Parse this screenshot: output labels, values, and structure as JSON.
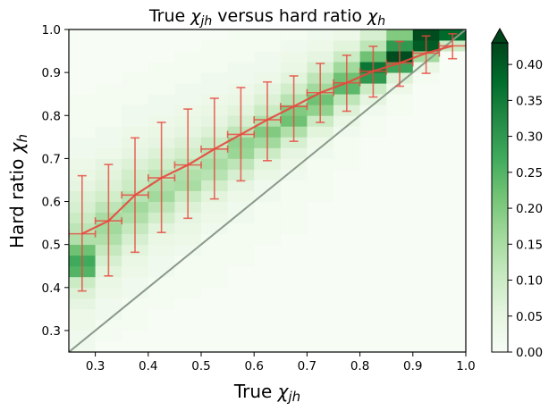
{
  "chart_data": {
    "type": "heatmap",
    "title": "True χjh versus hard ratio χh",
    "title_parts": {
      "prefix": "True ",
      "sym1": "χ",
      "sub1": "jh",
      "middle": " versus hard ratio ",
      "sym2": "χ",
      "sub2": "h"
    },
    "xlabel_parts": {
      "prefix": "True ",
      "sym": "χ",
      "sub": "jh"
    },
    "ylabel_parts": {
      "prefix": "Hard ratio ",
      "sym": "χ",
      "sub": "h"
    },
    "xlim": [
      0.25,
      1.0
    ],
    "ylim": [
      0.25,
      1.0
    ],
    "x_ticks": [
      "0.3",
      "0.4",
      "0.5",
      "0.6",
      "0.7",
      "0.8",
      "0.9",
      "1.0"
    ],
    "y_ticks": [
      "0.3",
      "0.4",
      "0.5",
      "0.6",
      "0.7",
      "0.8",
      "0.9",
      "1.0"
    ],
    "colormap": "Greens",
    "colorbar": {
      "min": 0.0,
      "max": 0.43,
      "extend": "max",
      "ticks": [
        "0.00",
        "0.05",
        "0.10",
        "0.15",
        "0.20",
        "0.25",
        "0.30",
        "0.35",
        "0.40"
      ]
    },
    "x_bin_edges": [
      0.25,
      0.3,
      0.35,
      0.4,
      0.45,
      0.5,
      0.55,
      0.6,
      0.65,
      0.7,
      0.75,
      0.8,
      0.85,
      0.9,
      0.95,
      1.0
    ],
    "y_bin_edges": [
      0.25,
      0.275,
      0.3,
      0.325,
      0.35,
      0.375,
      0.4,
      0.425,
      0.45,
      0.475,
      0.5,
      0.525,
      0.55,
      0.575,
      0.6,
      0.625,
      0.65,
      0.675,
      0.7,
      0.725,
      0.75,
      0.775,
      0.8,
      0.825,
      0.85,
      0.875,
      0.9,
      0.925,
      0.95,
      0.975,
      1.0
    ],
    "heatmap_values": [
      [
        0.02,
        0.0,
        0.0,
        0.0,
        0.0,
        0.0,
        0.0,
        0.0,
        0.0,
        0.0,
        0.0,
        0.0,
        0.0,
        0.0,
        0.0
      ],
      [
        0.02,
        0.01,
        0.0,
        0.0,
        0.0,
        0.0,
        0.0,
        0.0,
        0.0,
        0.0,
        0.0,
        0.0,
        0.0,
        0.0,
        0.0
      ],
      [
        0.03,
        0.01,
        0.01,
        0.0,
        0.0,
        0.0,
        0.0,
        0.0,
        0.0,
        0.0,
        0.0,
        0.0,
        0.0,
        0.0,
        0.0
      ],
      [
        0.03,
        0.02,
        0.01,
        0.0,
        0.0,
        0.0,
        0.0,
        0.0,
        0.0,
        0.0,
        0.0,
        0.0,
        0.0,
        0.0,
        0.0
      ],
      [
        0.05,
        0.02,
        0.01,
        0.01,
        0.0,
        0.0,
        0.0,
        0.0,
        0.0,
        0.0,
        0.0,
        0.0,
        0.0,
        0.0,
        0.0
      ],
      [
        0.07,
        0.03,
        0.02,
        0.01,
        0.01,
        0.0,
        0.0,
        0.0,
        0.0,
        0.0,
        0.0,
        0.0,
        0.0,
        0.0,
        0.0
      ],
      [
        0.1,
        0.04,
        0.02,
        0.01,
        0.01,
        0.01,
        0.0,
        0.0,
        0.0,
        0.0,
        0.0,
        0.0,
        0.0,
        0.0,
        0.0
      ],
      [
        0.25,
        0.06,
        0.03,
        0.02,
        0.01,
        0.01,
        0.0,
        0.0,
        0.0,
        0.0,
        0.0,
        0.0,
        0.0,
        0.0,
        0.0
      ],
      [
        0.27,
        0.08,
        0.04,
        0.02,
        0.01,
        0.01,
        0.01,
        0.0,
        0.0,
        0.0,
        0.0,
        0.0,
        0.0,
        0.0,
        0.0
      ],
      [
        0.22,
        0.11,
        0.06,
        0.03,
        0.02,
        0.01,
        0.01,
        0.0,
        0.0,
        0.0,
        0.0,
        0.0,
        0.0,
        0.0,
        0.0
      ],
      [
        0.14,
        0.14,
        0.08,
        0.04,
        0.03,
        0.01,
        0.01,
        0.01,
        0.0,
        0.0,
        0.0,
        0.0,
        0.0,
        0.0,
        0.0
      ],
      [
        0.12,
        0.16,
        0.11,
        0.06,
        0.04,
        0.02,
        0.01,
        0.01,
        0.01,
        0.0,
        0.0,
        0.0,
        0.0,
        0.0,
        0.0
      ],
      [
        0.1,
        0.15,
        0.14,
        0.09,
        0.05,
        0.03,
        0.02,
        0.01,
        0.01,
        0.0,
        0.0,
        0.0,
        0.0,
        0.0,
        0.0
      ],
      [
        0.08,
        0.12,
        0.16,
        0.12,
        0.07,
        0.04,
        0.02,
        0.01,
        0.01,
        0.0,
        0.0,
        0.0,
        0.0,
        0.0,
        0.0
      ],
      [
        0.07,
        0.09,
        0.13,
        0.16,
        0.1,
        0.06,
        0.03,
        0.02,
        0.01,
        0.01,
        0.0,
        0.0,
        0.0,
        0.0,
        0.0
      ],
      [
        0.05,
        0.07,
        0.1,
        0.14,
        0.15,
        0.09,
        0.05,
        0.02,
        0.01,
        0.01,
        0.0,
        0.0,
        0.0,
        0.0,
        0.0
      ],
      [
        0.04,
        0.06,
        0.09,
        0.12,
        0.14,
        0.13,
        0.08,
        0.04,
        0.02,
        0.01,
        0.0,
        0.0,
        0.0,
        0.0,
        0.0
      ],
      [
        0.03,
        0.05,
        0.07,
        0.09,
        0.12,
        0.15,
        0.12,
        0.06,
        0.03,
        0.01,
        0.01,
        0.0,
        0.0,
        0.0,
        0.0
      ],
      [
        0.02,
        0.03,
        0.05,
        0.07,
        0.09,
        0.13,
        0.17,
        0.1,
        0.05,
        0.02,
        0.01,
        0.0,
        0.0,
        0.0,
        0.0
      ],
      [
        0.02,
        0.02,
        0.04,
        0.05,
        0.07,
        0.1,
        0.18,
        0.16,
        0.08,
        0.03,
        0.01,
        0.0,
        0.0,
        0.0,
        0.0
      ],
      [
        0.01,
        0.02,
        0.03,
        0.04,
        0.05,
        0.07,
        0.12,
        0.2,
        0.14,
        0.06,
        0.02,
        0.01,
        0.0,
        0.0,
        0.0
      ],
      [
        0.01,
        0.01,
        0.02,
        0.03,
        0.04,
        0.05,
        0.08,
        0.14,
        0.22,
        0.1,
        0.04,
        0.01,
        0.0,
        0.0,
        0.0
      ],
      [
        0.01,
        0.01,
        0.02,
        0.02,
        0.03,
        0.04,
        0.06,
        0.1,
        0.2,
        0.18,
        0.07,
        0.02,
        0.01,
        0.0,
        0.0
      ],
      [
        0.01,
        0.01,
        0.01,
        0.02,
        0.02,
        0.03,
        0.04,
        0.07,
        0.13,
        0.22,
        0.12,
        0.05,
        0.01,
        0.0,
        0.0
      ],
      [
        0.0,
        0.01,
        0.01,
        0.01,
        0.02,
        0.02,
        0.03,
        0.05,
        0.09,
        0.16,
        0.24,
        0.1,
        0.03,
        0.0,
        0.0
      ],
      [
        0.0,
        0.0,
        0.01,
        0.01,
        0.01,
        0.02,
        0.02,
        0.03,
        0.06,
        0.12,
        0.22,
        0.3,
        0.07,
        0.01,
        0.0
      ],
      [
        0.0,
        0.0,
        0.0,
        0.01,
        0.01,
        0.01,
        0.02,
        0.02,
        0.04,
        0.08,
        0.16,
        0.36,
        0.28,
        0.04,
        0.0
      ],
      [
        0.0,
        0.0,
        0.0,
        0.0,
        0.01,
        0.01,
        0.01,
        0.02,
        0.03,
        0.05,
        0.1,
        0.22,
        0.42,
        0.16,
        0.0
      ],
      [
        0.0,
        0.0,
        0.0,
        0.0,
        0.0,
        0.01,
        0.01,
        0.01,
        0.02,
        0.03,
        0.06,
        0.12,
        0.3,
        0.4,
        0.1
      ],
      [
        0.0,
        0.0,
        0.0,
        0.0,
        0.0,
        0.0,
        0.01,
        0.01,
        0.01,
        0.02,
        0.03,
        0.08,
        0.2,
        0.42,
        0.38
      ]
    ],
    "series": [
      {
        "type": "errorbar-line",
        "color": "#e8473d",
        "x": [
          0.275,
          0.325,
          0.375,
          0.425,
          0.475,
          0.525,
          0.575,
          0.625,
          0.675,
          0.725,
          0.775,
          0.825,
          0.875,
          0.925,
          0.975
        ],
        "y": [
          0.525,
          0.555,
          0.615,
          0.655,
          0.685,
          0.722,
          0.756,
          0.79,
          0.821,
          0.853,
          0.876,
          0.903,
          0.922,
          0.945,
          0.962
        ],
        "xerr": 0.025,
        "y_low": [
          0.392,
          0.427,
          0.482,
          0.528,
          0.561,
          0.606,
          0.648,
          0.695,
          0.74,
          0.784,
          0.81,
          0.843,
          0.868,
          0.898,
          0.932
        ],
        "y_high": [
          0.66,
          0.686,
          0.748,
          0.784,
          0.815,
          0.84,
          0.865,
          0.878,
          0.892,
          0.921,
          0.94,
          0.961,
          0.972,
          0.985,
          0.99
        ]
      },
      {
        "type": "reference-line",
        "color": "#8a9a8a",
        "x": [
          0.25,
          1.0
        ],
        "y": [
          0.25,
          1.0
        ]
      }
    ],
    "grid": false,
    "legend": "none"
  }
}
